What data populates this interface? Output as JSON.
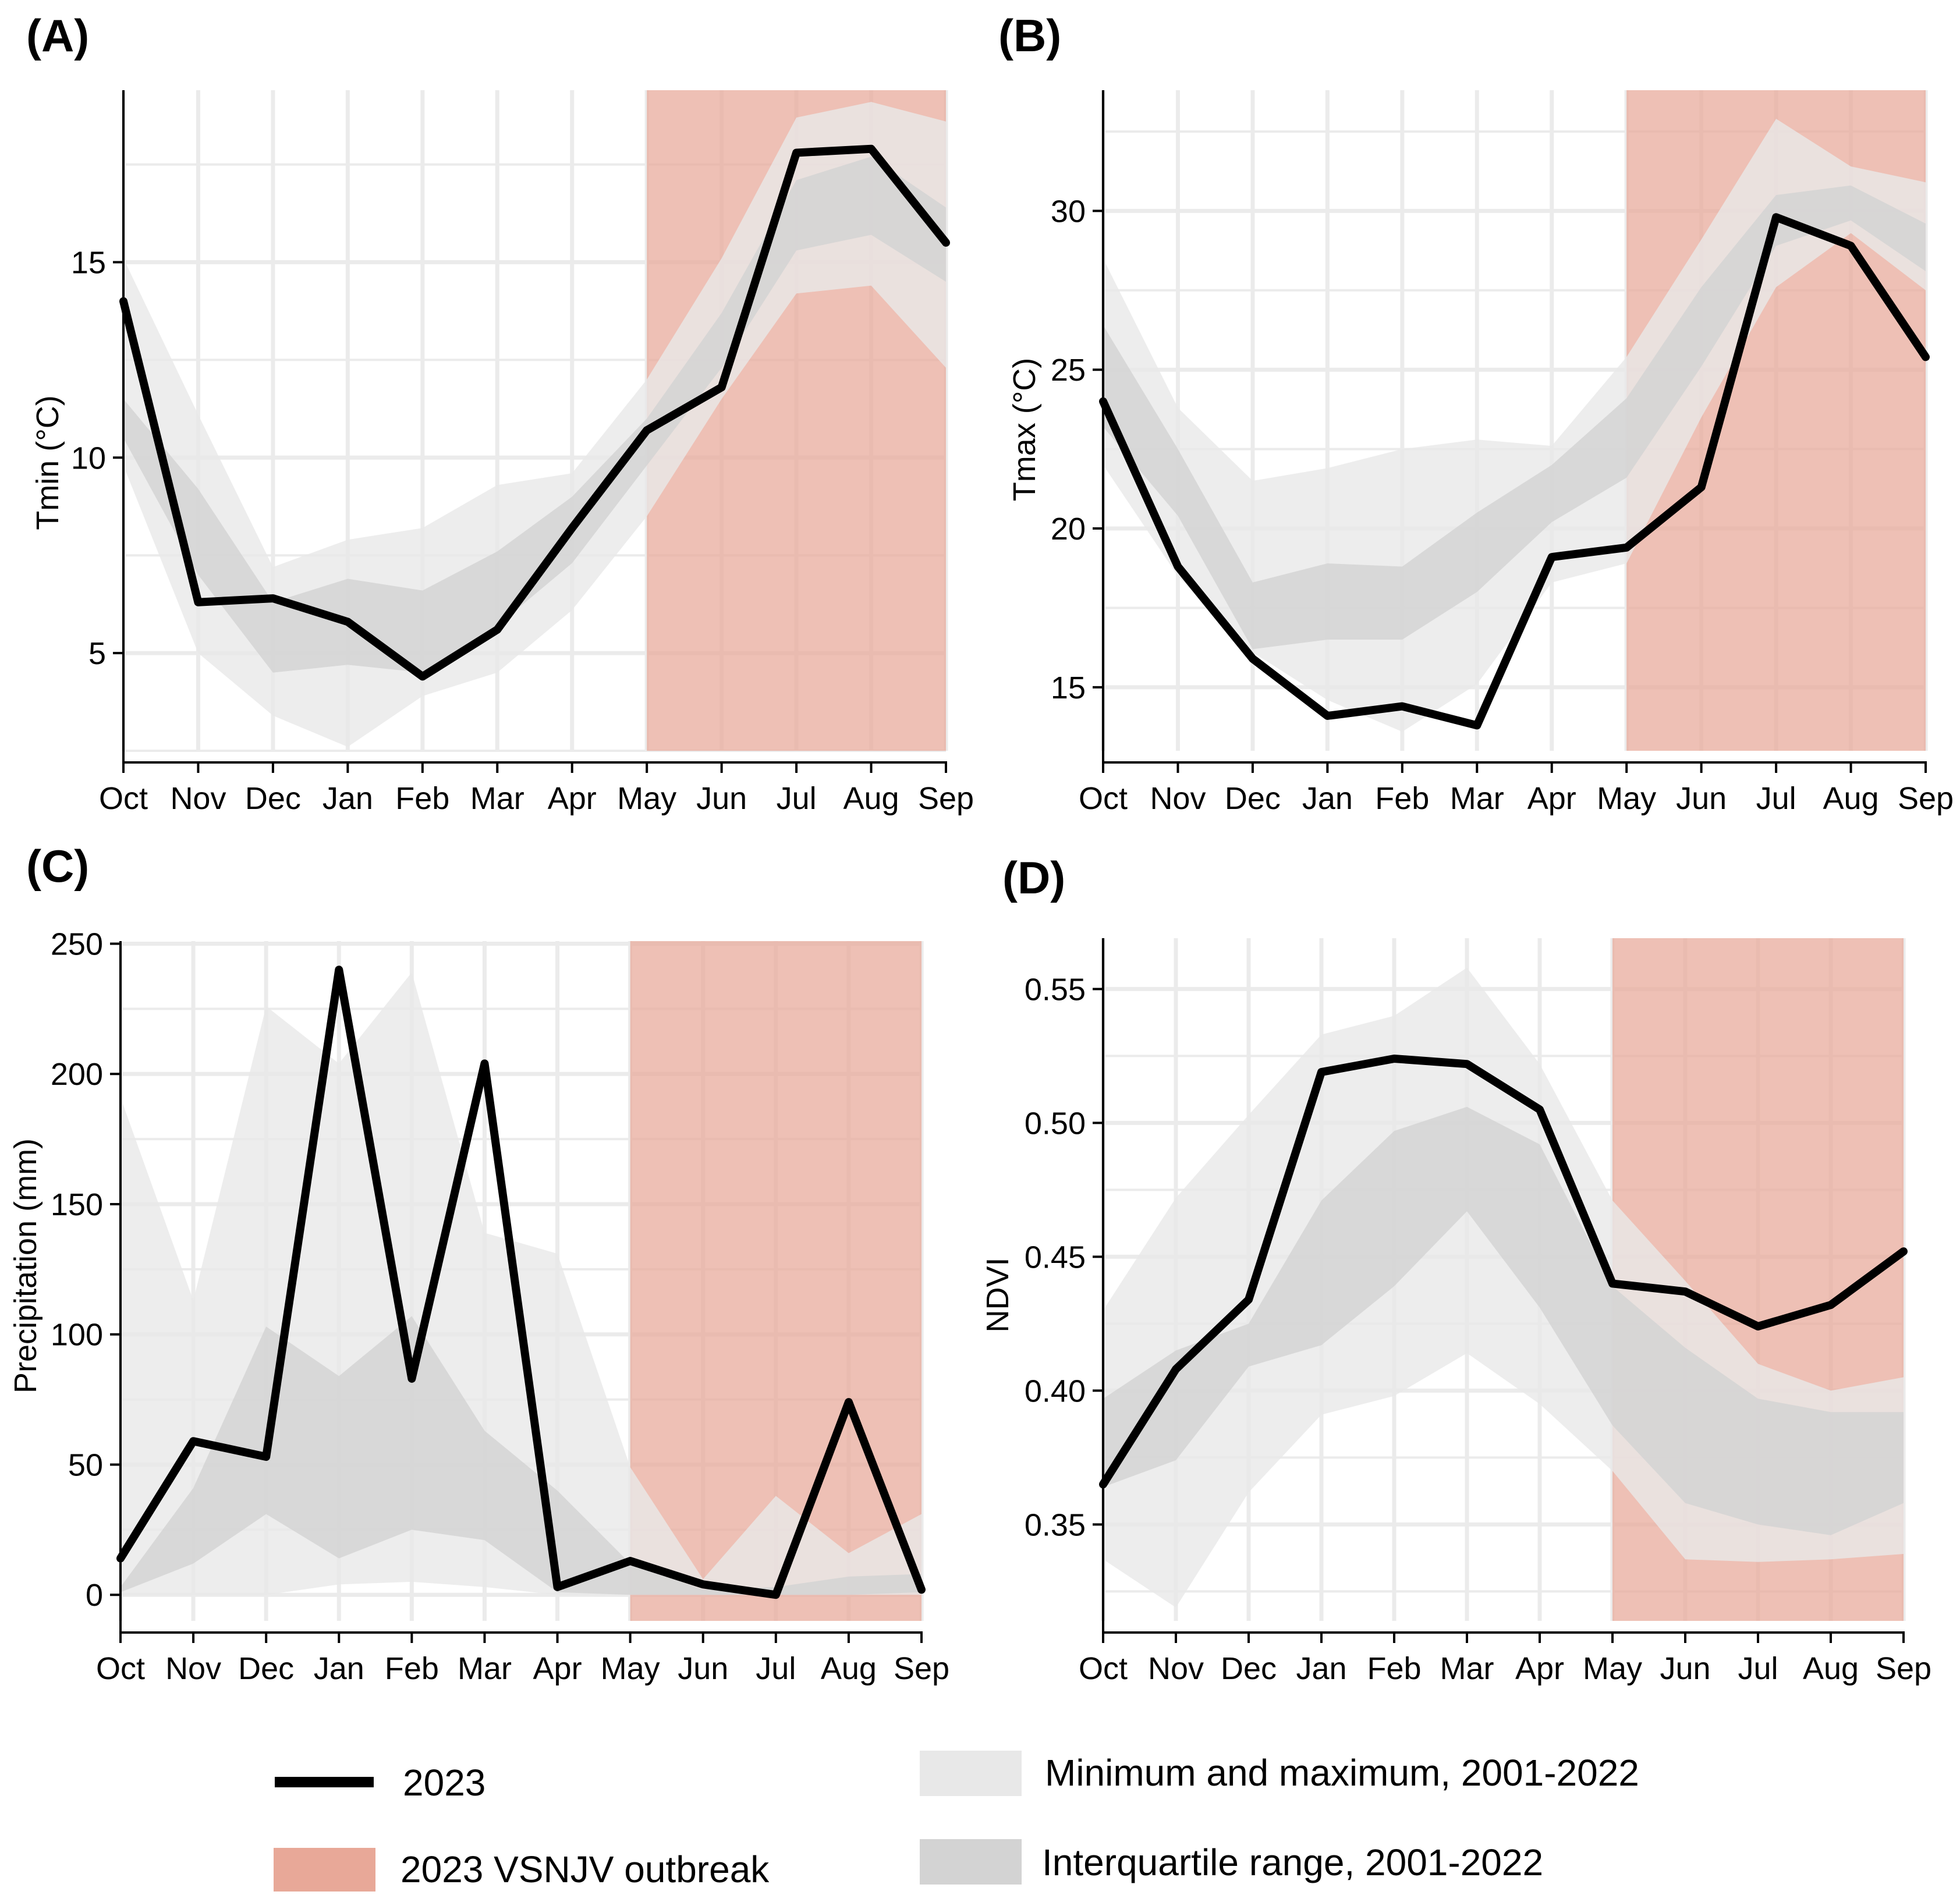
{
  "colors": {
    "line": "#000000",
    "minmax": "#e8e8e8",
    "iqr": "#d3d3d3",
    "outbreak": "#e8a898",
    "grid": "#ebebeb"
  },
  "legend": {
    "line_label": "2023",
    "outbreak_label": "2023 VSNJV outbreak",
    "minmax_label": "Minimum and maximum, 2001-2022",
    "iqr_label": "Interquartile range, 2001-2022"
  },
  "chart_data": [
    {
      "panel": "(A)",
      "type": "line",
      "ylabel": "Tmin (°C)",
      "categories": [
        "Oct",
        "Nov",
        "Dec",
        "Jan",
        "Feb",
        "Mar",
        "Apr",
        "May",
        "Jun",
        "Jul",
        "Aug",
        "Sep"
      ],
      "ylim": [
        2.5,
        19.4
      ],
      "yticks": [
        5,
        10,
        15
      ],
      "ytick_labels": [
        "5",
        "10",
        "15"
      ],
      "outbreak_range": [
        "May",
        "Sep"
      ],
      "series": [
        {
          "name": "2023",
          "values": [
            14.0,
            6.3,
            6.4,
            5.8,
            4.4,
            5.6,
            8.2,
            10.7,
            11.8,
            17.8,
            17.9,
            15.5
          ]
        },
        {
          "name": "Minimum, 2001-2022",
          "values": [
            9.8,
            5.0,
            3.4,
            2.6,
            3.9,
            4.5,
            6.1,
            8.5,
            11.5,
            14.2,
            14.4,
            12.3
          ]
        },
        {
          "name": "Maximum, 2001-2022",
          "values": [
            15.1,
            11.1,
            7.2,
            7.9,
            8.2,
            9.3,
            9.6,
            12.0,
            15.1,
            18.7,
            19.1,
            18.6
          ]
        },
        {
          "name": "Lower quartile, 2001-2022",
          "values": [
            10.5,
            7.0,
            4.5,
            4.7,
            4.5,
            5.7,
            7.3,
            9.8,
            12.3,
            15.3,
            15.7,
            14.5
          ]
        },
        {
          "name": "Upper quartile, 2001-2022",
          "values": [
            11.5,
            9.2,
            6.3,
            6.9,
            6.6,
            7.6,
            9.0,
            11.0,
            13.7,
            17.1,
            17.7,
            16.4
          ]
        }
      ]
    },
    {
      "panel": "(B)",
      "type": "line",
      "ylabel": "Tmax (°C)",
      "categories": [
        "Oct",
        "Nov",
        "Dec",
        "Jan",
        "Feb",
        "Mar",
        "Apr",
        "May",
        "Jun",
        "Jul",
        "Aug",
        "Sep"
      ],
      "ylim": [
        13.0,
        33.8
      ],
      "yticks": [
        15,
        20,
        25,
        30
      ],
      "ytick_labels": [
        "15",
        "20",
        "25",
        "30"
      ],
      "outbreak_range": [
        "May",
        "Sep"
      ],
      "series": [
        {
          "name": "2023",
          "values": [
            24.0,
            18.8,
            15.9,
            14.1,
            14.4,
            13.8,
            19.1,
            19.4,
            21.3,
            29.8,
            28.9,
            25.4
          ]
        },
        {
          "name": "Minimum, 2001-2022",
          "values": [
            22.0,
            18.5,
            16.1,
            14.6,
            13.6,
            15.1,
            18.3,
            18.9,
            23.5,
            27.6,
            29.3,
            27.5
          ]
        },
        {
          "name": "Maximum, 2001-2022",
          "values": [
            28.5,
            23.8,
            21.5,
            21.9,
            22.5,
            22.8,
            22.6,
            25.4,
            29.1,
            32.9,
            31.4,
            30.9
          ]
        },
        {
          "name": "Lower quartile, 2001-2022",
          "values": [
            23.2,
            20.4,
            16.2,
            16.5,
            16.5,
            18.0,
            20.2,
            21.6,
            25.1,
            28.9,
            29.7,
            28.1
          ]
        },
        {
          "name": "Upper quartile, 2001-2022",
          "values": [
            26.4,
            22.5,
            18.3,
            18.9,
            18.8,
            20.5,
            22.0,
            24.1,
            27.6,
            30.5,
            30.8,
            29.6
          ]
        }
      ]
    },
    {
      "panel": "(C)",
      "type": "line",
      "ylabel": "Precipitation (mm)",
      "categories": [
        "Oct",
        "Nov",
        "Dec",
        "Jan",
        "Feb",
        "Mar",
        "Apr",
        "May",
        "Jun",
        "Jul",
        "Aug",
        "Sep"
      ],
      "ylim": [
        -10,
        251
      ],
      "yticks": [
        0,
        50,
        100,
        150,
        200,
        250
      ],
      "ytick_labels": [
        "0",
        "50",
        "100",
        "150",
        "200",
        "250"
      ],
      "outbreak_range": [
        "May",
        "Sep"
      ],
      "series": [
        {
          "name": "2023",
          "values": [
            14,
            59,
            53,
            240,
            83,
            204,
            3,
            13,
            4,
            0,
            74,
            2
          ]
        },
        {
          "name": "Minimum, 2001-2022",
          "values": [
            0,
            0,
            0,
            4,
            5,
            3,
            0,
            0,
            0,
            0,
            0,
            0
          ]
        },
        {
          "name": "Maximum, 2001-2022",
          "values": [
            191,
            113,
            226,
            204,
            239,
            139,
            131,
            49,
            6,
            38,
            16,
            31
          ]
        },
        {
          "name": "Lower quartile, 2001-2022",
          "values": [
            1,
            12,
            31,
            14,
            25,
            21,
            1,
            0,
            0,
            0,
            0,
            1
          ]
        },
        {
          "name": "Upper quartile, 2001-2022",
          "values": [
            3,
            41,
            103,
            84,
            107,
            63,
            40,
            12,
            2,
            3,
            7,
            8
          ]
        }
      ]
    },
    {
      "panel": "(D)",
      "type": "line",
      "ylabel": "NDVI",
      "categories": [
        "Oct",
        "Nov",
        "Dec",
        "Jan",
        "Feb",
        "Mar",
        "Apr",
        "May",
        "Jun",
        "Jul",
        "Aug",
        "Sep"
      ],
      "ylim": [
        0.314,
        0.569
      ],
      "yticks": [
        0.35,
        0.4,
        0.45,
        0.5,
        0.55
      ],
      "ytick_labels": [
        "0.35",
        "0.40",
        "0.45",
        "0.50",
        "0.55"
      ],
      "outbreak_range": [
        "May",
        "Sep"
      ],
      "series": [
        {
          "name": "2023",
          "values": [
            0.365,
            0.408,
            0.434,
            0.519,
            0.524,
            0.522,
            0.505,
            0.44,
            0.437,
            0.424,
            0.432,
            0.452
          ]
        },
        {
          "name": "Minimum, 2001-2022",
          "values": [
            0.337,
            0.319,
            0.362,
            0.391,
            0.398,
            0.414,
            0.395,
            0.37,
            0.337,
            0.336,
            0.337,
            0.339
          ]
        },
        {
          "name": "Maximum, 2001-2022",
          "values": [
            0.43,
            0.472,
            0.503,
            0.533,
            0.54,
            0.558,
            0.522,
            0.471,
            0.441,
            0.41,
            0.4,
            0.405
          ]
        },
        {
          "name": "Lower quartile, 2001-2022",
          "values": [
            0.364,
            0.374,
            0.409,
            0.417,
            0.439,
            0.467,
            0.431,
            0.387,
            0.358,
            0.35,
            0.346,
            0.358
          ]
        },
        {
          "name": "Upper quartile, 2001-2022",
          "values": [
            0.397,
            0.415,
            0.425,
            0.471,
            0.497,
            0.506,
            0.492,
            0.439,
            0.416,
            0.397,
            0.392,
            0.392
          ]
        }
      ]
    }
  ]
}
